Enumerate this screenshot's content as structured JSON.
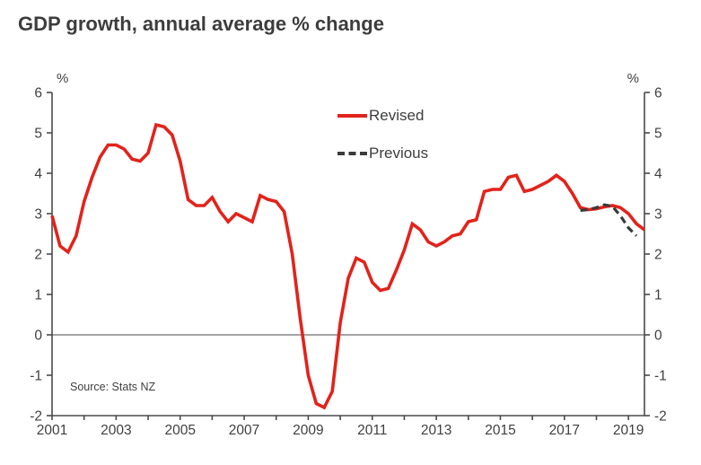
{
  "title": "GDP growth, annual average % change",
  "source": "Source: Stats NZ",
  "legend": {
    "revised": "Revised",
    "previous": "Previous"
  },
  "axes": {
    "left_unit": "%",
    "right_unit": "%"
  },
  "colors": {
    "revised_line": "#e2231b",
    "previous_line": "#3a3a3a",
    "axis": "#4a4a4a",
    "text": "#3f3f3f"
  },
  "chart_data": {
    "type": "line",
    "title": "GDP growth, annual average % change",
    "xlabel": "",
    "ylabel": "%",
    "xlim": [
      2001,
      2019.5
    ],
    "ylim": [
      -2,
      6
    ],
    "y_ticks": [
      -2,
      -1,
      0,
      1,
      2,
      3,
      4,
      5,
      6
    ],
    "x_minor_tick_years": [
      2001,
      2002,
      2003,
      2004,
      2005,
      2006,
      2007,
      2008,
      2009,
      2010,
      2011,
      2012,
      2013,
      2014,
      2015,
      2016,
      2017,
      2018,
      2019
    ],
    "x_tick_labels": [
      "2001",
      "2003",
      "2005",
      "2007",
      "2009",
      "2011",
      "2013",
      "2015",
      "2017",
      "2019"
    ],
    "x_tick_label_years": [
      2001,
      2003,
      2005,
      2007,
      2009,
      2011,
      2013,
      2015,
      2017,
      2019
    ],
    "grid": false,
    "zero_line": true,
    "legend_position": "inside-top-center",
    "x_step": 0.25,
    "series": [
      {
        "name": "Revised",
        "style": "solid",
        "color": "#e2231b",
        "x_start": 2001.0,
        "values": [
          2.95,
          2.2,
          2.05,
          2.45,
          3.3,
          3.9,
          4.4,
          4.7,
          4.7,
          4.6,
          4.35,
          4.3,
          4.5,
          5.2,
          5.15,
          4.95,
          4.3,
          3.35,
          3.2,
          3.2,
          3.4,
          3.05,
          2.8,
          3.0,
          2.9,
          2.8,
          3.45,
          3.35,
          3.3,
          3.05,
          2.0,
          0.4,
          -1.0,
          -1.7,
          -1.8,
          -1.4,
          0.3,
          1.4,
          1.9,
          1.8,
          1.3,
          1.1,
          1.15,
          1.6,
          2.1,
          2.75,
          2.6,
          2.3,
          2.2,
          2.3,
          2.45,
          2.5,
          2.8,
          2.85,
          3.55,
          3.6,
          3.6,
          3.9,
          3.95,
          3.55,
          3.6,
          3.7,
          3.8,
          3.95,
          3.8,
          3.5,
          3.15,
          3.1,
          3.12,
          3.17,
          3.2,
          3.15,
          3.0,
          2.75,
          2.6
        ]
      },
      {
        "name": "Previous",
        "style": "dashed",
        "color": "#3a3a3a",
        "x_start": 2017.5,
        "values": [
          3.08,
          3.1,
          3.15,
          3.22,
          3.18,
          2.95,
          2.65,
          2.45
        ]
      }
    ]
  }
}
